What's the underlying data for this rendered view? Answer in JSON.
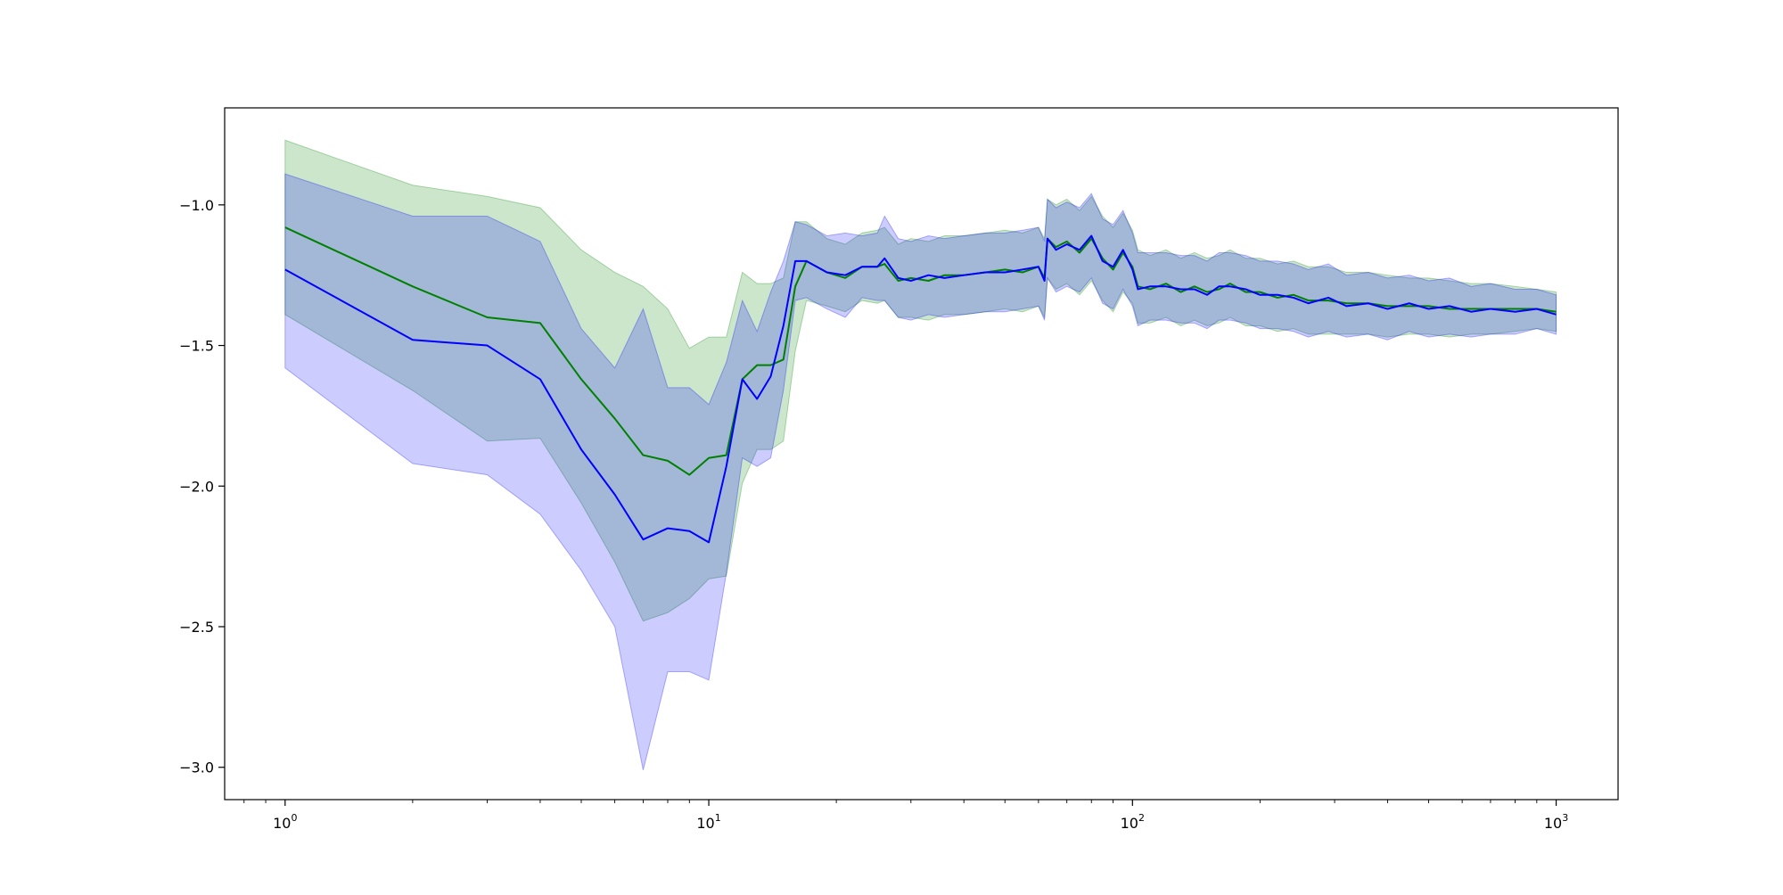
{
  "chart_data": {
    "type": "line",
    "title": "",
    "xlabel": "",
    "ylabel": "",
    "x_scale": "log",
    "xlim": [
      0.72,
      1400
    ],
    "ylim": [
      -3.115,
      -0.655
    ],
    "grid": false,
    "legend": "none",
    "x_ticks": [
      {
        "value": 1,
        "base": "10",
        "exp": "0"
      },
      {
        "value": 10,
        "base": "10",
        "exp": "1"
      },
      {
        "value": 100,
        "base": "10",
        "exp": "2"
      },
      {
        "value": 1000,
        "base": "10",
        "exp": "3"
      }
    ],
    "y_ticks": [
      {
        "value": -1.0,
        "label": "−1.0"
      },
      {
        "value": -1.5,
        "label": "−1.5"
      },
      {
        "value": -2.0,
        "label": "−2.0"
      },
      {
        "value": -2.5,
        "label": "−2.5"
      },
      {
        "value": -3.0,
        "label": "−3.0"
      }
    ],
    "series": [
      {
        "color": "#008000",
        "band_color": "#008000",
        "band_opacity": 0.2,
        "points": [
          [
            1,
            -1.08,
            -0.77,
            -1.39
          ],
          [
            2,
            -1.29,
            -0.93,
            -1.66
          ],
          [
            3,
            -1.4,
            -0.97,
            -1.84
          ],
          [
            4,
            -1.42,
            -1.01,
            -1.83
          ],
          [
            5,
            -1.62,
            -1.16,
            -2.06
          ],
          [
            6,
            -1.76,
            -1.24,
            -2.27
          ],
          [
            7,
            -1.89,
            -1.29,
            -2.48
          ],
          [
            8,
            -1.91,
            -1.37,
            -2.45
          ],
          [
            9,
            -1.96,
            -1.51,
            -2.4
          ],
          [
            10,
            -1.9,
            -1.47,
            -2.33
          ],
          [
            11,
            -1.89,
            -1.47,
            -2.32
          ],
          [
            12,
            -1.62,
            -1.24,
            -1.99
          ],
          [
            13,
            -1.57,
            -1.28,
            -1.87
          ],
          [
            14,
            -1.57,
            -1.28,
            -1.87
          ],
          [
            15,
            -1.55,
            -1.26,
            -1.84
          ],
          [
            16,
            -1.29,
            -1.06,
            -1.52
          ],
          [
            17,
            -1.2,
            -1.06,
            -1.34
          ],
          [
            19,
            -1.24,
            -1.12,
            -1.36
          ],
          [
            21,
            -1.26,
            -1.14,
            -1.38
          ],
          [
            23,
            -1.22,
            -1.1,
            -1.34
          ],
          [
            25,
            -1.22,
            -1.09,
            -1.35
          ],
          [
            26,
            -1.21,
            -1.08,
            -1.34
          ],
          [
            28,
            -1.27,
            -1.14,
            -1.4
          ],
          [
            30,
            -1.26,
            -1.12,
            -1.4
          ],
          [
            33,
            -1.27,
            -1.13,
            -1.41
          ],
          [
            36,
            -1.25,
            -1.11,
            -1.39
          ],
          [
            40,
            -1.25,
            -1.11,
            -1.39
          ],
          [
            45,
            -1.24,
            -1.1,
            -1.38
          ],
          [
            50,
            -1.23,
            -1.09,
            -1.37
          ],
          [
            55,
            -1.24,
            -1.1,
            -1.38
          ],
          [
            60,
            -1.22,
            -1.08,
            -1.36
          ],
          [
            62,
            -1.26,
            -1.12,
            -1.4
          ],
          [
            63,
            -1.12,
            -0.98,
            -1.26
          ],
          [
            66,
            -1.15,
            -1.0,
            -1.3
          ],
          [
            70,
            -1.13,
            -0.98,
            -1.28
          ],
          [
            75,
            -1.17,
            -1.02,
            -1.32
          ],
          [
            80,
            -1.12,
            -0.97,
            -1.27
          ],
          [
            85,
            -1.19,
            -1.04,
            -1.34
          ],
          [
            90,
            -1.23,
            -1.08,
            -1.38
          ],
          [
            95,
            -1.17,
            -1.03,
            -1.31
          ],
          [
            100,
            -1.22,
            -1.09,
            -1.35
          ],
          [
            103,
            -1.29,
            -1.16,
            -1.42
          ],
          [
            110,
            -1.3,
            -1.18,
            -1.42
          ],
          [
            120,
            -1.28,
            -1.16,
            -1.4
          ],
          [
            130,
            -1.31,
            -1.19,
            -1.43
          ],
          [
            140,
            -1.29,
            -1.17,
            -1.41
          ],
          [
            150,
            -1.31,
            -1.19,
            -1.43
          ],
          [
            160,
            -1.3,
            -1.18,
            -1.42
          ],
          [
            170,
            -1.28,
            -1.16,
            -1.4
          ],
          [
            185,
            -1.31,
            -1.19,
            -1.43
          ],
          [
            200,
            -1.31,
            -1.19,
            -1.43
          ],
          [
            220,
            -1.33,
            -1.21,
            -1.45
          ],
          [
            240,
            -1.32,
            -1.2,
            -1.44
          ],
          [
            260,
            -1.34,
            -1.22,
            -1.46
          ],
          [
            290,
            -1.34,
            -1.22,
            -1.46
          ],
          [
            320,
            -1.35,
            -1.24,
            -1.46
          ],
          [
            360,
            -1.35,
            -1.24,
            -1.46
          ],
          [
            400,
            -1.36,
            -1.25,
            -1.47
          ],
          [
            450,
            -1.36,
            -1.26,
            -1.46
          ],
          [
            500,
            -1.36,
            -1.26,
            -1.46
          ],
          [
            560,
            -1.37,
            -1.27,
            -1.47
          ],
          [
            630,
            -1.37,
            -1.28,
            -1.46
          ],
          [
            700,
            -1.37,
            -1.28,
            -1.46
          ],
          [
            800,
            -1.37,
            -1.29,
            -1.45
          ],
          [
            900,
            -1.37,
            -1.3,
            -1.44
          ],
          [
            1000,
            -1.38,
            -1.31,
            -1.45
          ]
        ]
      },
      {
        "color": "#0000ff",
        "band_color": "#0000ff",
        "band_opacity": 0.2,
        "points": [
          [
            1,
            -1.23,
            -0.89,
            -1.58
          ],
          [
            2,
            -1.48,
            -1.04,
            -1.92
          ],
          [
            3,
            -1.5,
            -1.04,
            -1.96
          ],
          [
            4,
            -1.62,
            -1.13,
            -2.1
          ],
          [
            5,
            -1.87,
            -1.44,
            -2.3
          ],
          [
            6,
            -2.03,
            -1.58,
            -2.5
          ],
          [
            7,
            -2.19,
            -1.37,
            -3.01
          ],
          [
            8,
            -2.15,
            -1.65,
            -2.66
          ],
          [
            9,
            -2.16,
            -1.65,
            -2.66
          ],
          [
            10,
            -2.2,
            -1.71,
            -2.69
          ],
          [
            11,
            -1.93,
            -1.56,
            -2.31
          ],
          [
            12,
            -1.62,
            -1.34,
            -1.9
          ],
          [
            13,
            -1.69,
            -1.45,
            -1.93
          ],
          [
            14,
            -1.61,
            -1.31,
            -1.9
          ],
          [
            15,
            -1.43,
            -1.2,
            -1.66
          ],
          [
            16,
            -1.2,
            -1.06,
            -1.34
          ],
          [
            17,
            -1.2,
            -1.07,
            -1.33
          ],
          [
            19,
            -1.24,
            -1.11,
            -1.37
          ],
          [
            21,
            -1.25,
            -1.1,
            -1.4
          ],
          [
            23,
            -1.22,
            -1.11,
            -1.33
          ],
          [
            25,
            -1.22,
            -1.1,
            -1.34
          ],
          [
            26,
            -1.19,
            -1.04,
            -1.34
          ],
          [
            28,
            -1.26,
            -1.12,
            -1.4
          ],
          [
            30,
            -1.27,
            -1.13,
            -1.41
          ],
          [
            33,
            -1.25,
            -1.11,
            -1.39
          ],
          [
            36,
            -1.26,
            -1.12,
            -1.4
          ],
          [
            40,
            -1.25,
            -1.11,
            -1.39
          ],
          [
            45,
            -1.24,
            -1.1,
            -1.38
          ],
          [
            50,
            -1.24,
            -1.1,
            -1.38
          ],
          [
            55,
            -1.23,
            -1.09,
            -1.37
          ],
          [
            60,
            -1.22,
            -1.08,
            -1.36
          ],
          [
            62,
            -1.27,
            -1.13,
            -1.41
          ],
          [
            63,
            -1.12,
            -0.98,
            -1.26
          ],
          [
            66,
            -1.16,
            -1.01,
            -1.31
          ],
          [
            70,
            -1.14,
            -0.99,
            -1.29
          ],
          [
            75,
            -1.16,
            -1.01,
            -1.31
          ],
          [
            80,
            -1.11,
            -0.96,
            -1.26
          ],
          [
            85,
            -1.2,
            -1.05,
            -1.35
          ],
          [
            90,
            -1.22,
            -1.07,
            -1.37
          ],
          [
            95,
            -1.16,
            -1.02,
            -1.3
          ],
          [
            100,
            -1.23,
            -1.1,
            -1.36
          ],
          [
            103,
            -1.3,
            -1.17,
            -1.43
          ],
          [
            110,
            -1.29,
            -1.17,
            -1.41
          ],
          [
            120,
            -1.29,
            -1.17,
            -1.41
          ],
          [
            130,
            -1.3,
            -1.18,
            -1.42
          ],
          [
            140,
            -1.3,
            -1.18,
            -1.42
          ],
          [
            150,
            -1.32,
            -1.2,
            -1.44
          ],
          [
            160,
            -1.29,
            -1.17,
            -1.41
          ],
          [
            170,
            -1.29,
            -1.17,
            -1.41
          ],
          [
            185,
            -1.3,
            -1.18,
            -1.42
          ],
          [
            200,
            -1.32,
            -1.2,
            -1.44
          ],
          [
            220,
            -1.32,
            -1.2,
            -1.44
          ],
          [
            240,
            -1.33,
            -1.21,
            -1.45
          ],
          [
            260,
            -1.35,
            -1.23,
            -1.47
          ],
          [
            290,
            -1.33,
            -1.21,
            -1.45
          ],
          [
            320,
            -1.36,
            -1.25,
            -1.47
          ],
          [
            360,
            -1.35,
            -1.24,
            -1.46
          ],
          [
            400,
            -1.37,
            -1.26,
            -1.48
          ],
          [
            450,
            -1.35,
            -1.25,
            -1.45
          ],
          [
            500,
            -1.37,
            -1.27,
            -1.47
          ],
          [
            560,
            -1.36,
            -1.26,
            -1.46
          ],
          [
            630,
            -1.38,
            -1.29,
            -1.47
          ],
          [
            700,
            -1.37,
            -1.28,
            -1.46
          ],
          [
            800,
            -1.38,
            -1.3,
            -1.46
          ],
          [
            900,
            -1.37,
            -1.3,
            -1.44
          ],
          [
            1000,
            -1.39,
            -1.32,
            -1.46
          ]
        ]
      }
    ]
  }
}
